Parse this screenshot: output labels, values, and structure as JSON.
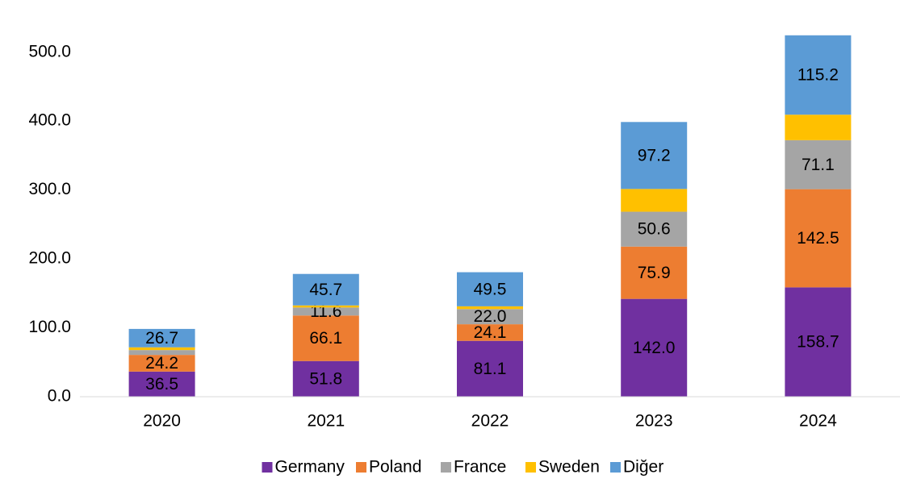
{
  "chart_data": {
    "type": "stacked_bar",
    "categories": [
      "2020",
      "2021",
      "2022",
      "2023",
      "2024"
    ],
    "series": [
      {
        "name": "Germany",
        "color": "#7030a0",
        "values": [
          36.5,
          51.8,
          81.1,
          142.0,
          158.7
        ],
        "value_labels": [
          "36.5",
          "51.8",
          "81.1",
          "142.0",
          "158.7"
        ]
      },
      {
        "name": "Poland",
        "color": "#ed7d31",
        "values": [
          24.2,
          66.1,
          24.1,
          75.9,
          142.5
        ],
        "value_labels": [
          "24.2",
          "66.1",
          "24.1",
          "75.9",
          "142.5"
        ]
      },
      {
        "name": "France",
        "color": "#a5a5a5",
        "values": [
          7,
          11.6,
          22.0,
          50.6,
          71.1
        ],
        "value_labels": [
          null,
          "11.6",
          "22.0",
          "50.6",
          "71.1"
        ]
      },
      {
        "name": "Sweden",
        "color": "#ffc000",
        "values": [
          4,
          3,
          4,
          33,
          37
        ],
        "value_labels": [
          null,
          null,
          null,
          null,
          null
        ]
      },
      {
        "name": "Diğer",
        "color": "#5b9bd5",
        "values": [
          26.7,
          45.7,
          49.5,
          97.2,
          115.2
        ],
        "value_labels": [
          "26.7",
          "45.7",
          "49.5",
          "97.2",
          "115.2"
        ]
      }
    ],
    "ylim": [
      0,
      550
    ],
    "yticks": [
      {
        "value": 0,
        "label": "0.0"
      },
      {
        "value": 100,
        "label": "100.0"
      },
      {
        "value": 200,
        "label": "200.0"
      },
      {
        "value": 300,
        "label": "300.0"
      },
      {
        "value": 400,
        "label": "400.0"
      },
      {
        "value": 500,
        "label": "500.0"
      }
    ],
    "grid": false,
    "legend": "bottom"
  }
}
